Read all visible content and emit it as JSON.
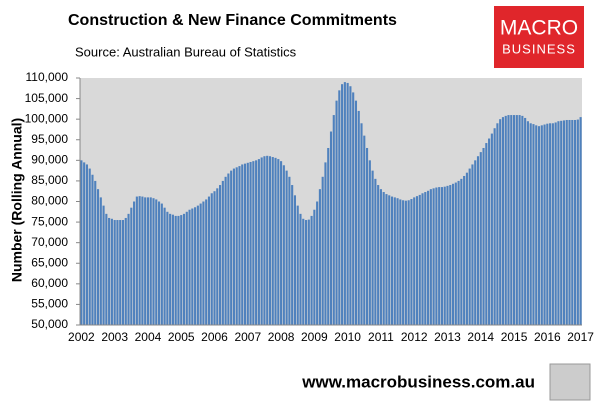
{
  "chart_data": {
    "type": "bar",
    "title": "Construction & New Finance Commitments",
    "subtitle": "Source: Australian  Bureau of Statistics",
    "y_label": "Number (Rolling Annual)",
    "color": "#4f81bd",
    "grid": false,
    "ylim": [
      50000,
      110000
    ],
    "yticks": [
      {
        "value": 50000,
        "label": "50,000"
      },
      {
        "value": 55000,
        "label": "55,000"
      },
      {
        "value": 60000,
        "label": "60,000"
      },
      {
        "value": 65000,
        "label": "65,000"
      },
      {
        "value": 70000,
        "label": "70,000"
      },
      {
        "value": 75000,
        "label": "75,000"
      },
      {
        "value": 80000,
        "label": "80,000"
      },
      {
        "value": 85000,
        "label": "85,000"
      },
      {
        "value": 90000,
        "label": "90,000"
      },
      {
        "value": 95000,
        "label": "95,000"
      },
      {
        "value": 100000,
        "label": "100,000"
      },
      {
        "value": 105000,
        "label": "105,000"
      },
      {
        "value": 110000,
        "label": "110,000"
      }
    ],
    "categories": [
      "2002",
      null,
      null,
      null,
      null,
      null,
      null,
      null,
      null,
      null,
      null,
      null,
      "2003",
      null,
      null,
      null,
      null,
      null,
      null,
      null,
      null,
      null,
      null,
      null,
      "2004",
      null,
      null,
      null,
      null,
      null,
      null,
      null,
      null,
      null,
      null,
      null,
      "2005",
      null,
      null,
      null,
      null,
      null,
      null,
      null,
      null,
      null,
      null,
      null,
      "2006",
      null,
      null,
      null,
      null,
      null,
      null,
      null,
      null,
      null,
      null,
      null,
      "2007",
      null,
      null,
      null,
      null,
      null,
      null,
      null,
      null,
      null,
      null,
      null,
      "2008",
      null,
      null,
      null,
      null,
      null,
      null,
      null,
      null,
      null,
      null,
      null,
      "2009",
      null,
      null,
      null,
      null,
      null,
      null,
      null,
      null,
      null,
      null,
      null,
      "2010",
      null,
      null,
      null,
      null,
      null,
      null,
      null,
      null,
      null,
      null,
      null,
      "2011",
      null,
      null,
      null,
      null,
      null,
      null,
      null,
      null,
      null,
      null,
      null,
      "2012",
      null,
      null,
      null,
      null,
      null,
      null,
      null,
      null,
      null,
      null,
      null,
      "2013",
      null,
      null,
      null,
      null,
      null,
      null,
      null,
      null,
      null,
      null,
      null,
      "2014",
      null,
      null,
      null,
      null,
      null,
      null,
      null,
      null,
      null,
      null,
      null,
      "2015",
      null,
      null,
      null,
      null,
      null,
      null,
      null,
      null,
      null,
      null,
      null,
      "2016",
      null,
      null,
      null,
      null,
      null,
      null,
      null,
      null,
      null,
      null,
      null,
      "2017"
    ],
    "values": [
      90000,
      89500,
      89000,
      88000,
      86500,
      85000,
      83000,
      81000,
      79000,
      77000,
      76000,
      75800,
      75500,
      75500,
      75500,
      75500,
      76000,
      77000,
      78500,
      80000,
      81200,
      81300,
      81200,
      81000,
      81000,
      81000,
      80800,
      80500,
      80000,
      79500,
      78500,
      77500,
      77000,
      76800,
      76500,
      76500,
      76700,
      77000,
      77500,
      78000,
      78300,
      78600,
      79000,
      79500,
      80000,
      80500,
      81200,
      82000,
      82500,
      83200,
      84000,
      85000,
      86000,
      86800,
      87500,
      88000,
      88300,
      88600,
      89000,
      89200,
      89400,
      89600,
      89800,
      90000,
      90300,
      90700,
      91000,
      91100,
      91000,
      90800,
      90600,
      90300,
      89800,
      88800,
      87500,
      86000,
      84000,
      81500,
      79000,
      77000,
      75800,
      75500,
      75600,
      76500,
      78000,
      80000,
      83000,
      86000,
      89500,
      93000,
      97000,
      101000,
      104500,
      107000,
      108500,
      109000,
      108800,
      108000,
      106500,
      104500,
      102000,
      99000,
      96000,
      93000,
      90000,
      87500,
      85500,
      84000,
      83000,
      82300,
      81800,
      81500,
      81200,
      81000,
      80800,
      80500,
      80300,
      80200,
      80300,
      80600,
      81000,
      81300,
      81600,
      82000,
      82300,
      82600,
      83000,
      83200,
      83400,
      83500,
      83500,
      83600,
      83800,
      84000,
      84300,
      84600,
      85000,
      85500,
      86200,
      87000,
      88000,
      89000,
      90000,
      91000,
      92000,
      93000,
      94200,
      95300,
      96500,
      97800,
      99000,
      100000,
      100500,
      100800,
      101000,
      101000,
      101000,
      101000,
      101000,
      100800,
      100300,
      99500,
      99000,
      98800,
      98500,
      98300,
      98500,
      98700,
      98900,
      99000,
      99000,
      99200,
      99500,
      99600,
      99700,
      99800,
      99800,
      99800,
      99800,
      99900,
      100500
    ]
  },
  "branding": {
    "logo_top": "MACRO",
    "logo_bottom": "BUSINESS",
    "url": "www.macrobusiness.com.au"
  }
}
